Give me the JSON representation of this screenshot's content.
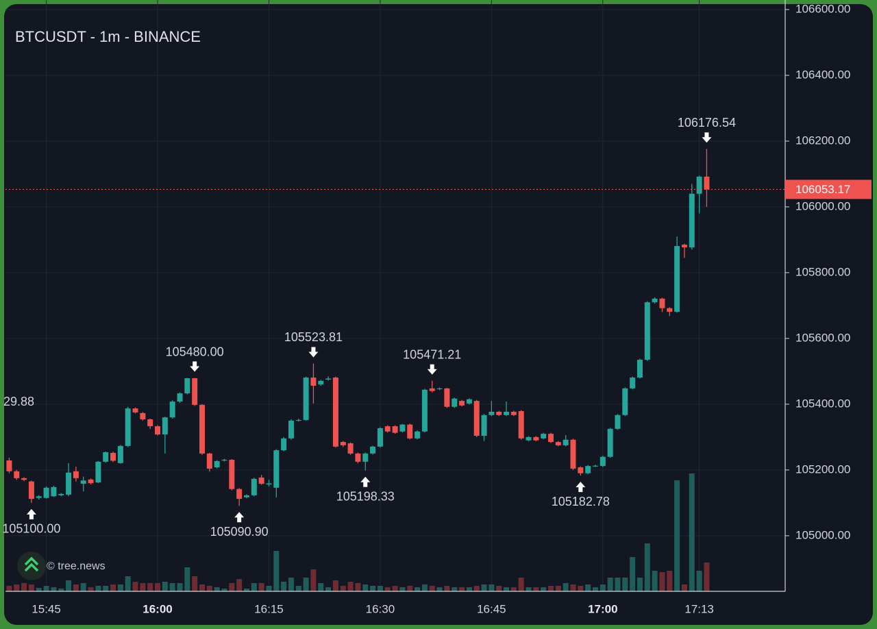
{
  "chart_data": {
    "type": "candlestick",
    "title": "BTCUSDT - 1m - BINANCE",
    "watermark": "© tree.news",
    "left_edge_label": "29.88",
    "last_price_label": "106053.17",
    "up_color": "#26a69a",
    "down_color": "#ef5350",
    "volume_up_color": "#1f5d5a",
    "volume_down_color": "#6e2b31",
    "grid": true,
    "ylim": [
      104831,
      106627
    ],
    "yticks": [
      {
        "value": 105000,
        "label": "105000.00"
      },
      {
        "value": 105200,
        "label": "105200.00"
      },
      {
        "value": 105400,
        "label": "105400.00"
      },
      {
        "value": 105600,
        "label": "105600.00"
      },
      {
        "value": 105800,
        "label": "105800.00"
      },
      {
        "value": 106000,
        "label": "106000.00"
      },
      {
        "value": 106200,
        "label": "106200.00"
      },
      {
        "value": 106400,
        "label": "106400.00"
      },
      {
        "value": 106600,
        "label": "106600.00"
      }
    ],
    "categories": [
      null,
      null,
      null,
      null,
      null,
      "15:45",
      null,
      null,
      null,
      null,
      null,
      null,
      null,
      null,
      null,
      null,
      null,
      null,
      null,
      null,
      "16:00",
      null,
      null,
      null,
      null,
      null,
      null,
      null,
      null,
      null,
      null,
      null,
      null,
      null,
      null,
      "16:15",
      null,
      null,
      null,
      null,
      null,
      null,
      null,
      null,
      null,
      null,
      null,
      null,
      null,
      null,
      "16:30",
      null,
      null,
      null,
      null,
      null,
      null,
      null,
      null,
      null,
      null,
      null,
      null,
      null,
      null,
      "16:45",
      null,
      null,
      null,
      null,
      null,
      null,
      null,
      null,
      null,
      null,
      null,
      null,
      null,
      null,
      "17:00",
      null,
      null,
      null,
      null,
      null,
      null,
      null,
      null,
      null,
      null,
      null,
      null,
      "17:13",
      null
    ],
    "open": [
      105229,
      105196,
      105175,
      105165,
      105115,
      105115,
      105120,
      105123,
      105125,
      105196,
      105158,
      105171,
      105162,
      105225,
      105252,
      105221,
      105273,
      105387,
      105373,
      105354,
      105333,
      105308,
      105360,
      105408,
      105433,
      105479,
      105398,
      105250,
      105208,
      105229,
      105231,
      105142,
      105117,
      105123,
      105177,
      105156,
      105146,
      105260,
      105296,
      105350,
      105352,
      105481,
      105460,
      105475,
      105481,
      105285,
      105281,
      105250,
      105225,
      105250,
      105271,
      105333,
      105333,
      105317,
      105338,
      105296,
      105317,
      105448,
      105446,
      105448,
      105392,
      105410,
      105402,
      105410,
      105304,
      105367,
      105377,
      105367,
      105377,
      105379,
      105290,
      105300,
      105296,
      105310,
      105285,
      105275,
      105292,
      105208,
      105190,
      105212,
      105212,
      105240,
      105325,
      105367,
      105448,
      105481,
      105535,
      105710,
      105721,
      105692,
      105681,
      105885,
      105877,
      106040,
      106092
    ],
    "high": [
      105237,
      105200,
      105178,
      105168,
      105123,
      105150,
      105152,
      105130,
      105221,
      105210,
      105180,
      105174,
      105227,
      105256,
      105256,
      105276,
      105392,
      105390,
      105376,
      105356,
      105336,
      105362,
      105412,
      105436,
      105480,
      105480,
      105400,
      105252,
      105230,
      105234,
      105233,
      105145,
      105126,
      105176,
      105185,
      105170,
      105263,
      105300,
      105354,
      105356,
      105484,
      105523.81,
      105474,
      105485,
      105484,
      105288,
      105284,
      105253,
      105253,
      105274,
      105330,
      105336,
      105336,
      105340,
      105341,
      105320,
      105447,
      105471.21,
      105451,
      105450,
      105420,
      105413,
      105418,
      105413,
      105370,
      105410,
      105380,
      105408,
      105380,
      105382,
      105303,
      105303,
      105313,
      105313,
      105288,
      105306,
      105295,
      105211,
      105215,
      105216,
      105243,
      105328,
      105370,
      105451,
      105484,
      105538,
      105713,
      105725,
      105724,
      105695,
      105910,
      105888,
      106070,
      106095,
      106176.54
    ],
    "low": [
      105190,
      105170,
      105166,
      105100,
      105110,
      105113,
      105118,
      105120,
      105120,
      105165,
      105135,
      105156,
      105160,
      105222,
      105224,
      105219,
      105270,
      105372,
      105350,
      105325,
      105305,
      105250,
      105356,
      105404,
      105430,
      105395,
      105246,
      105195,
      105205,
      105226,
      105138,
      105090.9,
      105114,
      105120,
      105155,
      105150,
      105116,
      105257,
      105292,
      105347,
      105350,
      105402,
      105456,
      105472,
      105268,
      105270,
      105246,
      105220,
      105198.33,
      105247,
      105268,
      105314,
      105310,
      105314,
      105293,
      105293,
      105314,
      105436,
      105443,
      105389,
      105389,
      105393,
      105399,
      105300,
      105288,
      105364,
      105364,
      105364,
      105364,
      105292,
      105287,
      105287,
      105293,
      105282,
      105272,
      105272,
      105200,
      105182.78,
      105187,
      105209,
      105209,
      105237,
      105322,
      105364,
      105445,
      105478,
      105532,
      105706,
      105680,
      105668,
      105678,
      105845,
      105870,
      105980,
      106000
    ],
    "close": [
      105196,
      105175,
      105170,
      105112,
      105120,
      105146,
      105148,
      105127,
      105192,
      105175,
      105168,
      105160,
      105225,
      105254,
      105228,
      105273,
      105387,
      105375,
      105354,
      105333,
      105308,
      105360,
      105408,
      105433,
      105479,
      105398,
      105250,
      105204,
      105227,
      105231,
      105142,
      105112,
      105123,
      105173,
      105158,
      105159,
      105260,
      105296,
      105350,
      105352,
      105481,
      105456,
      105471,
      105478,
      105271,
      105275,
      105250,
      105225,
      105250,
      105271,
      105327,
      105317,
      105313,
      105338,
      105296,
      105317,
      105444,
      105440,
      105448,
      105392,
      105417,
      105396,
      105415,
      105304,
      105367,
      105377,
      105367,
      105377,
      105367,
      105296,
      105300,
      105290,
      105310,
      105285,
      105275,
      105292,
      105204,
      105190,
      105212,
      105213,
      105240,
      105325,
      105367,
      105448,
      105481,
      105535,
      105710,
      105721,
      105692,
      105681,
      105881,
      105877,
      106040,
      106092,
      106053.17
    ],
    "high_labels": [
      null,
      null,
      null,
      null,
      null,
      null,
      null,
      null,
      null,
      null,
      null,
      null,
      null,
      null,
      null,
      null,
      null,
      null,
      null,
      null,
      null,
      null,
      null,
      null,
      null,
      "105480.00",
      null,
      null,
      null,
      null,
      null,
      null,
      null,
      null,
      null,
      null,
      null,
      null,
      null,
      null,
      null,
      "105523.81",
      null,
      null,
      null,
      null,
      null,
      null,
      null,
      null,
      null,
      null,
      null,
      null,
      null,
      null,
      null,
      "105471.21",
      null,
      null,
      null,
      null,
      null,
      null,
      null,
      null,
      null,
      null,
      null,
      null,
      null,
      null,
      null,
      null,
      null,
      null,
      null,
      null,
      null,
      null,
      null,
      null,
      null,
      null,
      null,
      null,
      null,
      null,
      null,
      null,
      null,
      null,
      null,
      null,
      "106176.54"
    ],
    "low_labels": [
      null,
      null,
      null,
      "105100.00",
      null,
      null,
      null,
      null,
      null,
      null,
      null,
      null,
      null,
      null,
      null,
      null,
      null,
      null,
      null,
      null,
      null,
      null,
      null,
      null,
      null,
      null,
      null,
      null,
      null,
      null,
      null,
      "105090.90",
      null,
      null,
      null,
      null,
      null,
      null,
      null,
      null,
      null,
      null,
      null,
      null,
      null,
      null,
      null,
      null,
      "105198.33",
      null,
      null,
      null,
      null,
      null,
      null,
      null,
      null,
      null,
      null,
      null,
      null,
      null,
      null,
      null,
      null,
      null,
      null,
      null,
      null,
      null,
      null,
      null,
      null,
      null,
      null,
      null,
      null,
      "105182.78",
      null,
      null,
      null,
      null,
      null,
      null,
      null,
      null,
      null,
      null,
      null,
      null,
      null,
      null,
      null,
      null,
      null
    ],
    "volume": [
      8,
      10,
      12,
      10,
      5,
      8,
      6,
      4,
      16,
      10,
      12,
      6,
      8,
      8,
      10,
      10,
      22,
      14,
      12,
      12,
      12,
      14,
      12,
      12,
      35,
      22,
      10,
      8,
      6,
      4,
      12,
      18,
      4,
      12,
      12,
      8,
      59,
      14,
      20,
      8,
      20,
      32,
      12,
      6,
      16,
      8,
      14,
      12,
      10,
      8,
      8,
      6,
      8,
      6,
      8,
      6,
      10,
      8,
      6,
      8,
      6,
      6,
      6,
      8,
      10,
      10,
      8,
      6,
      6,
      20,
      6,
      6,
      6,
      8,
      8,
      12,
      10,
      8,
      10,
      6,
      10,
      20,
      20,
      20,
      50,
      20,
      70,
      30,
      28,
      30,
      162,
      10,
      172,
      30,
      42
    ]
  }
}
